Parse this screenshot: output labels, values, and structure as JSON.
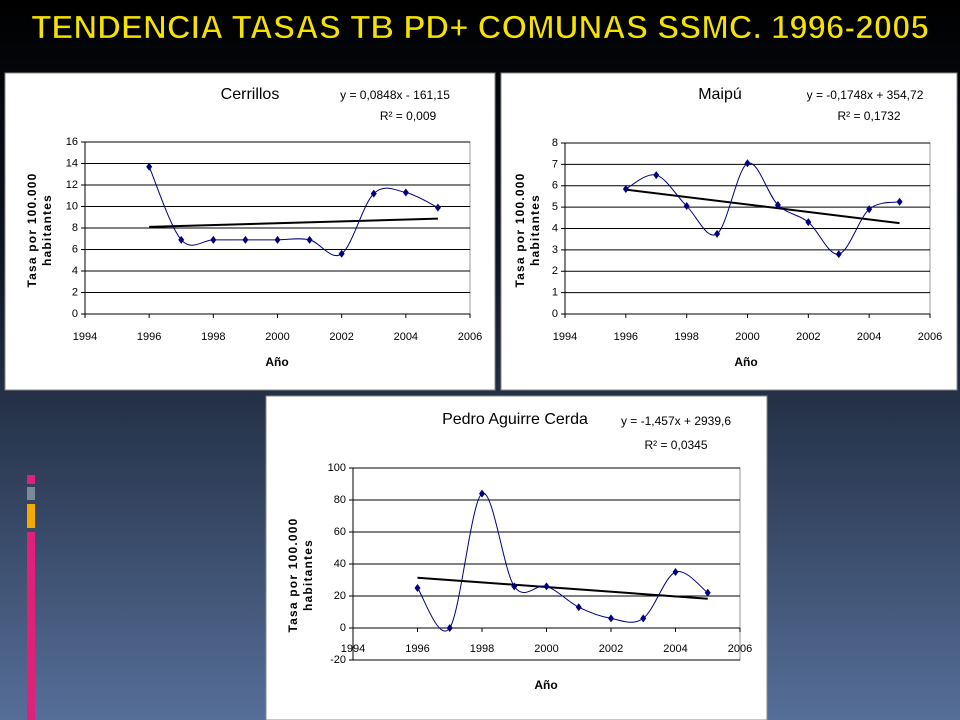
{
  "slide_title": "TENDENCIA TASAS TB PD+ COMUNAS SSMC. 1996-2005",
  "chart_data": [
    {
      "type": "line",
      "title": "Cerrillos",
      "equation": "y = 0,0848x - 161,15",
      "r2": "R² = 0,009",
      "xlabel": "Año",
      "ylabel": [
        "Tasa por 100.000",
        "habitantes"
      ],
      "x": [
        1996,
        1997,
        1998,
        1999,
        2000,
        2001,
        2002,
        2003,
        2004,
        2005
      ],
      "values": [
        13.7,
        6.9,
        6.9,
        6.9,
        6.9,
        6.9,
        5.6,
        11.2,
        11.3,
        9.9
      ],
      "trend": {
        "x": [
          1996,
          2005
        ],
        "values": [
          8.11,
          8.87
        ]
      },
      "color": "#000080",
      "xlim": [
        1994,
        2006
      ],
      "xticks": [
        1994,
        1996,
        1998,
        2000,
        2002,
        2004,
        2006
      ],
      "ylim": [
        0,
        16
      ],
      "yticks": [
        0,
        2,
        4,
        6,
        8,
        10,
        12,
        14,
        16
      ],
      "grid": true
    },
    {
      "type": "line",
      "title": "Maipú",
      "equation": "y = -0,1748x + 354,72",
      "r2": "R² = 0,1732",
      "xlabel": "Año",
      "ylabel": [
        "Tasa por 100.000",
        "habitantes"
      ],
      "x": [
        1996,
        1997,
        1998,
        1999,
        2000,
        2001,
        2002,
        2003,
        2004,
        2005
      ],
      "values": [
        5.85,
        6.5,
        5.05,
        3.75,
        7.05,
        5.1,
        4.3,
        2.8,
        4.9,
        5.25
      ],
      "trend": {
        "x": [
          1996,
          2005
        ],
        "values": [
          5.82,
          4.25
        ]
      },
      "color": "#000080",
      "xlim": [
        1994,
        2006
      ],
      "xticks": [
        1994,
        1996,
        1998,
        2000,
        2002,
        2004,
        2006
      ],
      "ylim": [
        0,
        8
      ],
      "yticks": [
        0,
        1,
        2,
        3,
        4,
        5,
        6,
        7,
        8
      ],
      "grid": true
    },
    {
      "type": "line",
      "title": "Pedro Aguirre Cerda",
      "equation": "y = -1,457x + 2939,6",
      "r2": "R² = 0,0345",
      "xlabel": "Año",
      "ylabel": [
        "Tasa por 100.000",
        "habitantes"
      ],
      "x": [
        1996,
        1997,
        1998,
        1999,
        2000,
        2001,
        2002,
        2003,
        2004,
        2005
      ],
      "values": [
        25,
        0,
        84,
        26,
        26,
        13,
        6,
        6,
        35,
        22
      ],
      "trend": {
        "x": [
          1996,
          2005
        ],
        "values": [
          31.4,
          18.3
        ]
      },
      "color": "#000080",
      "xlim": [
        1994,
        2006
      ],
      "xticks": [
        1994,
        1996,
        1998,
        2000,
        2002,
        2004,
        2006
      ],
      "ylim": [
        -20,
        100
      ],
      "yticks": [
        -20,
        0,
        20,
        40,
        60,
        80,
        100
      ],
      "grid": true
    }
  ]
}
